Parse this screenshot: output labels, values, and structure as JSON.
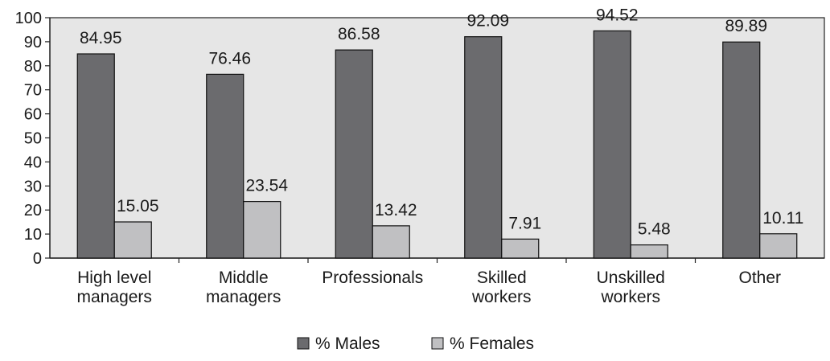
{
  "chart_data": {
    "type": "bar",
    "categories": [
      [
        "High level",
        "managers"
      ],
      [
        "Middle",
        "managers"
      ],
      [
        "Professionals"
      ],
      [
        "Skilled",
        "workers"
      ],
      [
        "Unskilled",
        "workers"
      ],
      [
        "Other"
      ]
    ],
    "series": [
      {
        "name": "% Males",
        "values": [
          84.95,
          76.46,
          86.58,
          92.09,
          94.52,
          89.89
        ],
        "labels": [
          "84.95",
          "76.46",
          "86.58",
          "92.09",
          "94.52",
          "89.89"
        ],
        "color": "#6b6b6e"
      },
      {
        "name": "% Females",
        "values": [
          15.05,
          23.54,
          13.42,
          7.91,
          5.48,
          10.11
        ],
        "labels": [
          "15.05",
          "23.54",
          "13.42",
          "7.91",
          "5.48",
          "10.11"
        ],
        "color": "#c0c0c2"
      }
    ],
    "yticks": [
      "0",
      "10",
      "20",
      "30",
      "40",
      "50",
      "60",
      "70",
      "80",
      "90",
      "100"
    ],
    "ylim": [
      0,
      100
    ],
    "title": "",
    "xlabel": "",
    "ylabel": "",
    "grid": false,
    "plot_background": "#e6e6e6",
    "legend_position": "bottom-center"
  }
}
